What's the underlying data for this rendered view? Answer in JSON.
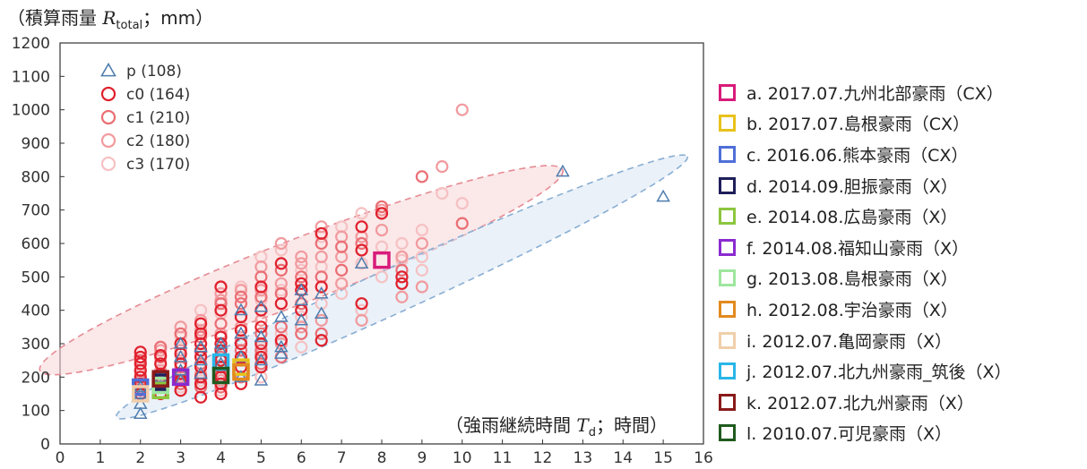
{
  "y_label": {
    "prefix": "（積算雨量 ",
    "var": "R",
    "sub": "total",
    "suffix": "；mm）"
  },
  "x_label": {
    "prefix": "（強雨継続時間 ",
    "var": "T",
    "sub": "d",
    "suffix": "；時間）"
  },
  "chart_data": {
    "type": "scatter",
    "xlim": [
      0,
      16
    ],
    "ylim": [
      0,
      1200
    ],
    "x_ticks": [
      0,
      1,
      2,
      3,
      4,
      5,
      6,
      7,
      8,
      9,
      10,
      11,
      12,
      13,
      14,
      15,
      16
    ],
    "y_ticks": [
      0,
      100,
      200,
      300,
      400,
      500,
      600,
      700,
      800,
      900,
      1000,
      1100,
      1200
    ],
    "grid": false,
    "marker_legend": [
      {
        "label": "p (108)",
        "marker": "triangle",
        "color": "#4f7dae"
      },
      {
        "label": "c0 (164)",
        "marker": "circle",
        "color": "#e0202c"
      },
      {
        "label": "c1 (210)",
        "marker": "circle",
        "color": "#ea6e74"
      },
      {
        "label": "c2 (180)",
        "marker": "circle",
        "color": "#f19a9e"
      },
      {
        "label": "c3 (170)",
        "marker": "circle",
        "color": "#f6c1c3"
      }
    ],
    "ellipses": [
      {
        "name": "c",
        "cx": 6,
        "cy": 520,
        "ax_end": [
          12.5,
          820
        ],
        "b": 95,
        "fill": "#f7d5d7",
        "stroke": "#e58b93"
      },
      {
        "name": "p",
        "cx": 8.5,
        "cy": 470,
        "ax_end": [
          15.6,
          860
        ],
        "b": 67,
        "fill": "#d8e6f3",
        "stroke": "#89aed3"
      }
    ],
    "series": [
      {
        "marker": "triangle",
        "color": "#4f7dae",
        "points": [
          [
            2,
            90
          ],
          [
            2,
            120
          ],
          [
            2,
            150
          ],
          [
            2,
            170
          ],
          [
            2.5,
            170
          ],
          [
            2.5,
            200
          ],
          [
            3,
            190
          ],
          [
            3,
            220
          ],
          [
            3,
            260
          ],
          [
            3,
            300
          ],
          [
            3.5,
            210
          ],
          [
            3.5,
            250
          ],
          [
            3.5,
            290
          ],
          [
            4,
            240
          ],
          [
            4,
            280
          ],
          [
            4,
            300
          ],
          [
            4.5,
            200
          ],
          [
            4.5,
            260
          ],
          [
            4.5,
            330
          ],
          [
            4.5,
            400
          ],
          [
            5,
            190
          ],
          [
            5,
            250
          ],
          [
            5,
            320
          ],
          [
            5,
            410
          ],
          [
            5.5,
            270
          ],
          [
            5.5,
            290
          ],
          [
            5.5,
            380
          ],
          [
            6,
            370
          ],
          [
            6,
            430
          ],
          [
            6,
            460
          ],
          [
            6.5,
            390
          ],
          [
            6.5,
            450
          ],
          [
            7.5,
            540
          ],
          [
            12.5,
            815
          ],
          [
            15,
            740
          ]
        ]
      },
      {
        "marker": "circle",
        "color": "#e0202c",
        "points": [
          [
            2,
            150
          ],
          [
            2,
            180
          ],
          [
            2,
            200
          ],
          [
            2,
            220
          ],
          [
            2,
            240
          ],
          [
            2,
            260
          ],
          [
            2,
            275
          ],
          [
            2.5,
            150
          ],
          [
            2.5,
            180
          ],
          [
            2.5,
            210
          ],
          [
            2.5,
            240
          ],
          [
            2.5,
            265
          ],
          [
            3,
            160
          ],
          [
            3,
            190
          ],
          [
            3,
            210
          ],
          [
            3,
            240
          ],
          [
            3,
            270
          ],
          [
            3,
            300
          ],
          [
            3.5,
            140
          ],
          [
            3.5,
            180
          ],
          [
            3.5,
            200
          ],
          [
            3.5,
            230
          ],
          [
            3.5,
            260
          ],
          [
            3.5,
            280
          ],
          [
            3.5,
            300
          ],
          [
            3.5,
            330
          ],
          [
            3.5,
            360
          ],
          [
            4,
            150
          ],
          [
            4,
            180
          ],
          [
            4,
            200
          ],
          [
            4,
            230
          ],
          [
            4,
            250
          ],
          [
            4,
            280
          ],
          [
            4,
            300
          ],
          [
            4,
            320
          ],
          [
            4,
            400
          ],
          [
            4,
            470
          ],
          [
            4.5,
            180
          ],
          [
            4.5,
            230
          ],
          [
            4.5,
            260
          ],
          [
            4.5,
            300
          ],
          [
            4.5,
            340
          ],
          [
            4.5,
            380
          ],
          [
            5,
            230
          ],
          [
            5,
            260
          ],
          [
            5,
            300
          ],
          [
            5,
            350
          ],
          [
            5,
            400
          ],
          [
            5,
            470
          ],
          [
            5.5,
            310
          ],
          [
            5.5,
            420
          ],
          [
            5.5,
            540
          ],
          [
            6,
            400
          ],
          [
            6,
            460
          ],
          [
            6,
            480
          ],
          [
            6.5,
            310
          ],
          [
            6.5,
            470
          ],
          [
            6.5,
            630
          ],
          [
            7.5,
            420
          ],
          [
            7.5,
            580
          ],
          [
            7.5,
            650
          ],
          [
            8,
            690
          ],
          [
            8.5,
            480
          ],
          [
            8.5,
            500
          ]
        ]
      },
      {
        "marker": "circle",
        "color": "#ea6e74",
        "points": [
          [
            2,
            160
          ],
          [
            2,
            190
          ],
          [
            2,
            250
          ],
          [
            2.5,
            190
          ],
          [
            2.5,
            260
          ],
          [
            2.5,
            290
          ],
          [
            3,
            180
          ],
          [
            3,
            230
          ],
          [
            3,
            330
          ],
          [
            3.5,
            170
          ],
          [
            3.5,
            240
          ],
          [
            3.5,
            300
          ],
          [
            3.5,
            320
          ],
          [
            4,
            170
          ],
          [
            4,
            210
          ],
          [
            4,
            260
          ],
          [
            4,
            360
          ],
          [
            4,
            420
          ],
          [
            4.5,
            200
          ],
          [
            4.5,
            280
          ],
          [
            4.5,
            420
          ],
          [
            4.5,
            440
          ],
          [
            5,
            240
          ],
          [
            5,
            280
          ],
          [
            5,
            330
          ],
          [
            5,
            440
          ],
          [
            5,
            500
          ],
          [
            5.5,
            260
          ],
          [
            5.5,
            350
          ],
          [
            5.5,
            450
          ],
          [
            5.5,
            520
          ],
          [
            6,
            330
          ],
          [
            6,
            420
          ],
          [
            6,
            500
          ],
          [
            6.5,
            330
          ],
          [
            6.5,
            500
          ],
          [
            6.5,
            600
          ],
          [
            7,
            520
          ],
          [
            7,
            590
          ],
          [
            7.5,
            600
          ],
          [
            8,
            710
          ],
          [
            8.5,
            520
          ],
          [
            9,
            800
          ],
          [
            10,
            660
          ]
        ]
      },
      {
        "marker": "circle",
        "color": "#f19a9e",
        "points": [
          [
            2,
            170
          ],
          [
            2,
            210
          ],
          [
            2.5,
            220
          ],
          [
            2.5,
            280
          ],
          [
            3,
            200
          ],
          [
            3,
            280
          ],
          [
            3,
            350
          ],
          [
            3.5,
            210
          ],
          [
            3.5,
            340
          ],
          [
            3.5,
            370
          ],
          [
            4,
            190
          ],
          [
            4,
            330
          ],
          [
            4,
            430
          ],
          [
            4,
            450
          ],
          [
            4.5,
            310
          ],
          [
            4.5,
            350
          ],
          [
            4.5,
            460
          ],
          [
            5,
            270
          ],
          [
            5,
            370
          ],
          [
            5,
            460
          ],
          [
            5,
            530
          ],
          [
            5.5,
            300
          ],
          [
            5.5,
            480
          ],
          [
            5.5,
            600
          ],
          [
            6,
            350
          ],
          [
            6,
            540
          ],
          [
            6,
            560
          ],
          [
            6.5,
            370
          ],
          [
            6.5,
            560
          ],
          [
            6.5,
            650
          ],
          [
            7,
            480
          ],
          [
            7,
            560
          ],
          [
            7,
            620
          ],
          [
            7.5,
            370
          ],
          [
            7.5,
            620
          ],
          [
            8,
            640
          ],
          [
            8,
            700
          ],
          [
            8.5,
            440
          ],
          [
            8.5,
            560
          ],
          [
            9,
            470
          ],
          [
            9,
            600
          ],
          [
            9.5,
            830
          ],
          [
            10,
            1000
          ]
        ]
      },
      {
        "marker": "circle",
        "color": "#f6c1c3",
        "points": [
          [
            2,
            185
          ],
          [
            2,
            230
          ],
          [
            2.5,
            175
          ],
          [
            2.5,
            250
          ],
          [
            3,
            170
          ],
          [
            3,
            260
          ],
          [
            3,
            320
          ],
          [
            3.5,
            190
          ],
          [
            3.5,
            270
          ],
          [
            3.5,
            400
          ],
          [
            4,
            160
          ],
          [
            4,
            250
          ],
          [
            4,
            390
          ],
          [
            4,
            470
          ],
          [
            4.5,
            250
          ],
          [
            4.5,
            380
          ],
          [
            4.5,
            470
          ],
          [
            5,
            200
          ],
          [
            5,
            290
          ],
          [
            5,
            430
          ],
          [
            5,
            560
          ],
          [
            5.5,
            330
          ],
          [
            5.5,
            460
          ],
          [
            5.5,
            580
          ],
          [
            6,
            290
          ],
          [
            6,
            380
          ],
          [
            6,
            520
          ],
          [
            6.5,
            420
          ],
          [
            6.5,
            530
          ],
          [
            6.5,
            620
          ],
          [
            7,
            450
          ],
          [
            7,
            650
          ],
          [
            7.5,
            400
          ],
          [
            7.5,
            540
          ],
          [
            7.5,
            690
          ],
          [
            8,
            500
          ],
          [
            8,
            590
          ],
          [
            8.5,
            550
          ],
          [
            8.5,
            600
          ],
          [
            9,
            520
          ],
          [
            9,
            560
          ],
          [
            9,
            640
          ],
          [
            9.5,
            750
          ],
          [
            10,
            720
          ]
        ]
      }
    ],
    "events": [
      {
        "label": "a. 2017.07.九州北部豪雨（CX）",
        "color": "#d81b7a",
        "x": 8,
        "y": 550
      },
      {
        "label": "b. 2017.07.島根豪雨（CX）",
        "color": "#e8c21b",
        "x": 4.5,
        "y": 230
      },
      {
        "label": "c. 2016.06.熊本豪雨（CX）",
        "color": "#4f6fd8",
        "x": 2,
        "y": 170
      },
      {
        "label": "d. 2014.09.胆振豪雨（X）",
        "color": "#1f1f5a",
        "x": 2.5,
        "y": 185
      },
      {
        "label": "e. 2014.08.広島豪雨（X）",
        "color": "#8cc63e",
        "x": 2.5,
        "y": 160
      },
      {
        "label": "f. 2014.08.福知山豪雨（X）",
        "color": "#8a2bd0",
        "x": 3,
        "y": 200
      },
      {
        "label": "g. 2013.08.島根豪雨（X）",
        "color": "#9ee69e",
        "x": 2.5,
        "y": 175
      },
      {
        "label": "h. 2012.08.宇治豪雨（X）",
        "color": "#e28a1f",
        "x": 4.5,
        "y": 215
      },
      {
        "label": "i. 2012.07.亀岡豪雨（X）",
        "color": "#f0cfaa",
        "x": 2,
        "y": 150
      },
      {
        "label": "j. 2012.07.北九州豪雨_筑後（X）",
        "color": "#29b6e8",
        "x": 4,
        "y": 245
      },
      {
        "label": "k. 2012.07.北九州豪雨（X）",
        "color": "#8a1a1a",
        "x": 2.5,
        "y": 195
      },
      {
        "label": "l. 2010.07.可児豪雨（X）",
        "color": "#1f5a1f",
        "x": 4,
        "y": 205
      }
    ]
  }
}
